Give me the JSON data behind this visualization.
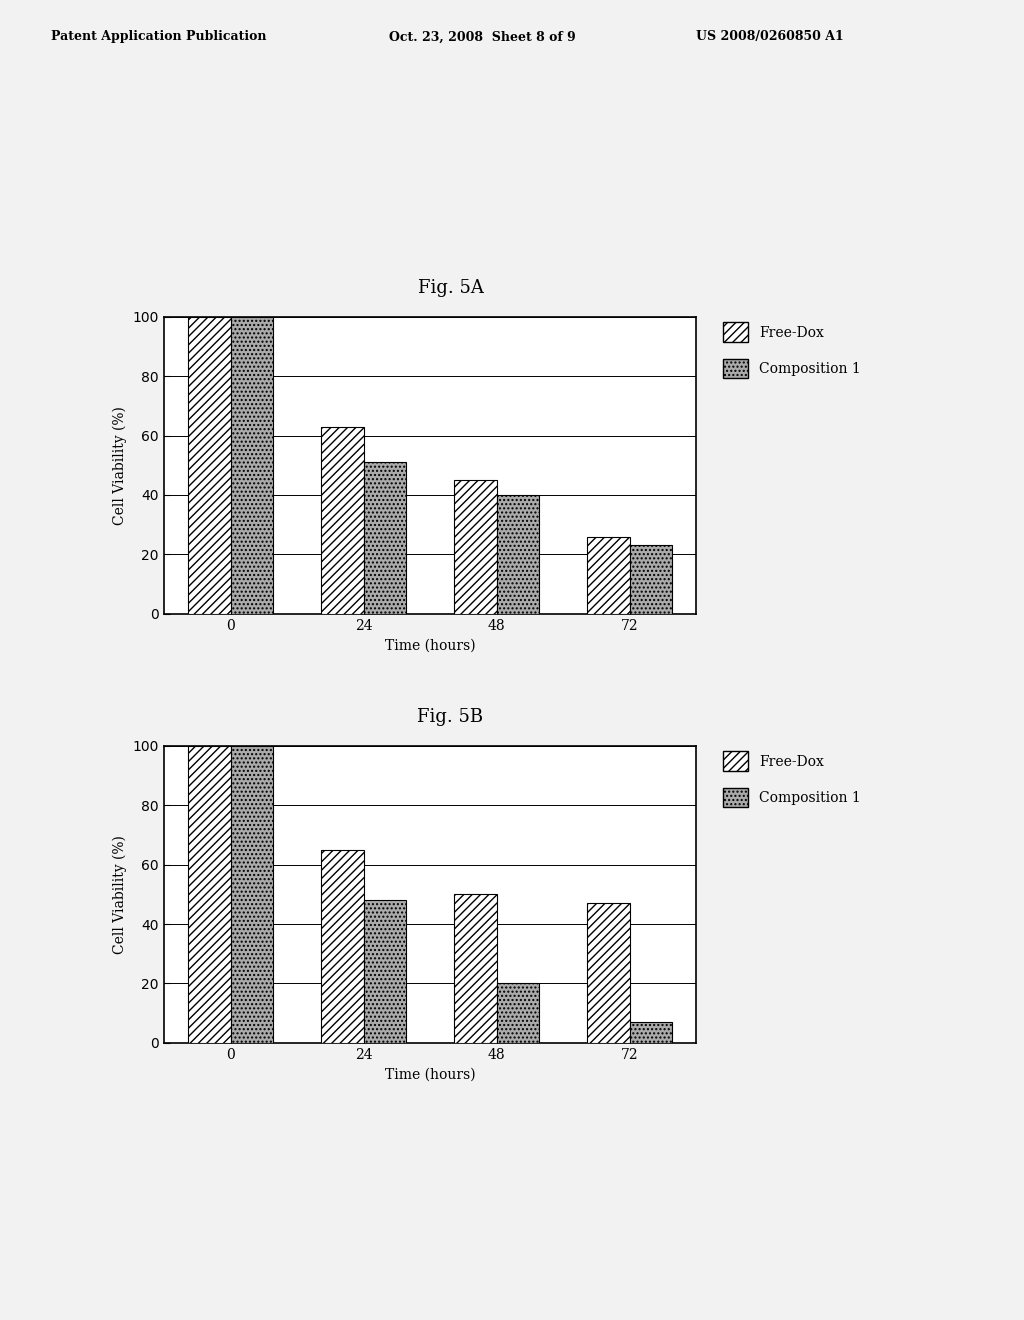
{
  "fig5A": {
    "title": "Fig. 5A",
    "categories": [
      0,
      24,
      48,
      72
    ],
    "free_dox": [
      100,
      63,
      45,
      26
    ],
    "composition1": [
      100,
      51,
      40,
      23
    ],
    "ylabel": "Cell Viability (%)",
    "xlabel": "Time (hours)",
    "ylim": [
      0,
      100
    ],
    "yticks": [
      0,
      20,
      40,
      60,
      80,
      100
    ]
  },
  "fig5B": {
    "title": "Fig. 5B",
    "categories": [
      0,
      24,
      48,
      72
    ],
    "free_dox": [
      100,
      65,
      50,
      47
    ],
    "composition1": [
      100,
      48,
      20,
      7
    ],
    "ylabel": "Cell Viability (%)",
    "xlabel": "Time (hours)",
    "ylim": [
      0,
      100
    ],
    "yticks": [
      0,
      20,
      40,
      60,
      80,
      100
    ]
  },
  "legend_labels": [
    "Free-Dox",
    "Composition 1"
  ],
  "background_color": "#f0f0f0",
  "bar_width": 0.32,
  "title_fontsize": 13,
  "label_fontsize": 10,
  "tick_fontsize": 10,
  "legend_fontsize": 10,
  "header_left": "Patent Application Publication",
  "header_mid": "Oct. 23, 2008  Sheet 8 of 9",
  "header_right": "US 2008/0260850 A1"
}
